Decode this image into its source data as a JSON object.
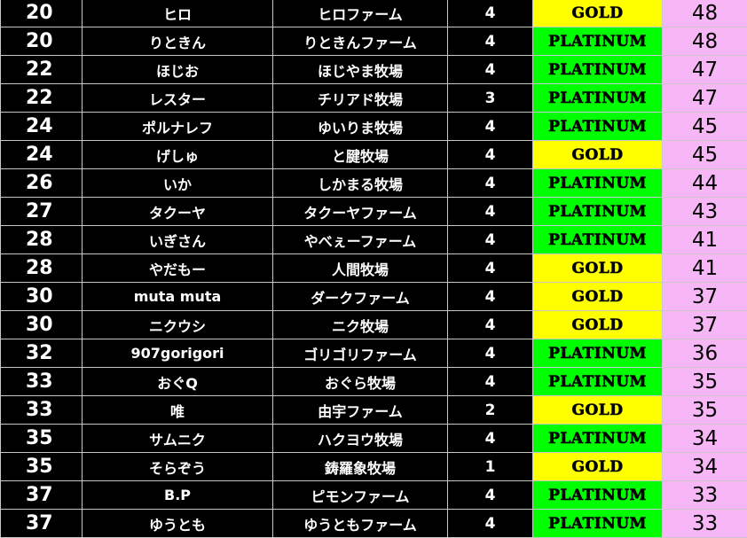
{
  "colors": {
    "PLATINUM": "#00ff00",
    "GOLD": "#ffff00",
    "score_bg": "#f7b6f5"
  },
  "rows": [
    {
      "rank": "20",
      "name": "ヒロ",
      "farm": "ヒロファーム",
      "count": "4",
      "tier": "GOLD",
      "score": "48"
    },
    {
      "rank": "20",
      "name": "りときん",
      "farm": "りときんファーム",
      "count": "4",
      "tier": "PLATINUM",
      "score": "48"
    },
    {
      "rank": "22",
      "name": "ほじお",
      "farm": "ほじやま牧場",
      "count": "4",
      "tier": "PLATINUM",
      "score": "47"
    },
    {
      "rank": "22",
      "name": "レスター",
      "farm": "チリアド牧場",
      "count": "3",
      "tier": "PLATINUM",
      "score": "47"
    },
    {
      "rank": "24",
      "name": "ポルナレフ",
      "farm": "ゆいりま牧場",
      "count": "4",
      "tier": "PLATINUM",
      "score": "45"
    },
    {
      "rank": "24",
      "name": "げしゅ",
      "farm": "と腱牧場",
      "count": "4",
      "tier": "GOLD",
      "score": "45"
    },
    {
      "rank": "26",
      "name": "いか",
      "farm": "しかまる牧場",
      "count": "4",
      "tier": "PLATINUM",
      "score": "44"
    },
    {
      "rank": "27",
      "name": "タクーヤ",
      "farm": "タクーヤファーム",
      "count": "4",
      "tier": "PLATINUM",
      "score": "43"
    },
    {
      "rank": "28",
      "name": "いぎさん",
      "farm": "やべぇーファーム",
      "count": "4",
      "tier": "PLATINUM",
      "score": "41"
    },
    {
      "rank": "28",
      "name": "やだもー",
      "farm": "人間牧場",
      "count": "4",
      "tier": "GOLD",
      "score": "41"
    },
    {
      "rank": "30",
      "name": "muta muta",
      "farm": "ダークファーム",
      "count": "4",
      "tier": "GOLD",
      "score": "37"
    },
    {
      "rank": "30",
      "name": "ニクウシ",
      "farm": "ニク牧場",
      "count": "4",
      "tier": "GOLD",
      "score": "37"
    },
    {
      "rank": "32",
      "name": "907gorigori",
      "farm": "ゴリゴリファーム",
      "count": "4",
      "tier": "PLATINUM",
      "score": "36"
    },
    {
      "rank": "33",
      "name": "おぐQ",
      "farm": "おぐら牧場",
      "count": "4",
      "tier": "PLATINUM",
      "score": "35"
    },
    {
      "rank": "33",
      "name": "唯",
      "farm": "由宇ファーム",
      "count": "2",
      "tier": "GOLD",
      "score": "35"
    },
    {
      "rank": "35",
      "name": "サムニク",
      "farm": "ハクヨウ牧場",
      "count": "4",
      "tier": "PLATINUM",
      "score": "34"
    },
    {
      "rank": "35",
      "name": "そらぞう",
      "farm": "鋳羅象牧場",
      "count": "1",
      "tier": "GOLD",
      "score": "34"
    },
    {
      "rank": "37",
      "name": "B.P",
      "farm": "ピモンファーム",
      "count": "4",
      "tier": "PLATINUM",
      "score": "33"
    },
    {
      "rank": "37",
      "name": "ゆうとも",
      "farm": "ゆうともファーム",
      "count": "4",
      "tier": "PLATINUM",
      "score": "33"
    }
  ]
}
